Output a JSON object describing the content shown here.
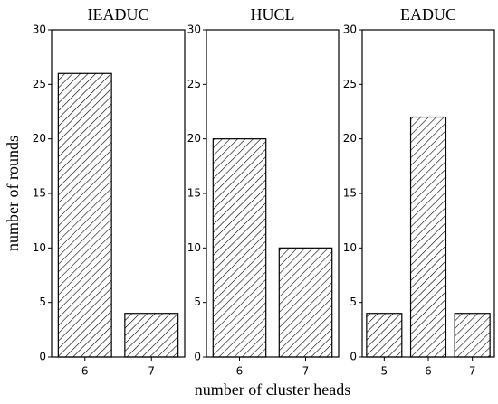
{
  "chart_data": [
    {
      "type": "bar",
      "title": "IEADUC",
      "ylabel": "number of rounds",
      "categories": [
        "6",
        "7"
      ],
      "values": [
        26,
        4
      ],
      "ylim": [
        0,
        30
      ],
      "yticks": [
        0,
        5,
        10,
        15,
        20,
        25,
        30
      ],
      "hatch": "////",
      "color": "#ffffff"
    },
    {
      "type": "bar",
      "title": "HUCL",
      "xlabel": "number of cluster heads",
      "categories": [
        "6",
        "7"
      ],
      "values": [
        20,
        10
      ],
      "ylim": [
        0,
        30
      ],
      "yticks": [
        0,
        5,
        10,
        15,
        20,
        25,
        30
      ],
      "hatch": "////",
      "color": "#ffffff"
    },
    {
      "type": "bar",
      "title": "EADUC",
      "categories": [
        "5",
        "6",
        "7"
      ],
      "values": [
        4,
        22,
        4
      ],
      "ylim": [
        0,
        30
      ],
      "yticks": [
        0,
        5,
        10,
        15,
        20,
        25,
        30
      ],
      "hatch": "////",
      "color": "#ffffff"
    }
  ]
}
